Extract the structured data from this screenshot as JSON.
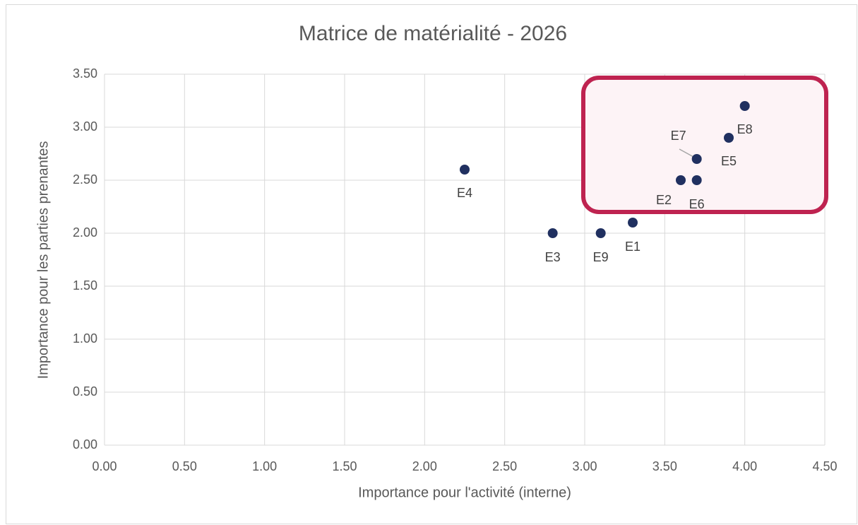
{
  "chart_data": {
    "type": "scatter",
    "title": "Matrice de matérialité - 2026",
    "x_label": "Importance pour l'activité (interne)",
    "y_label": "Importance pour les parties prenantes",
    "series": [
      {
        "color": "#203060",
        "labels": [
          "E1",
          "E2",
          "E3",
          "E4",
          "E5",
          "E6",
          "E7",
          "E8",
          "E9"
        ],
        "x": [
          3.3,
          3.6,
          2.8,
          2.25,
          3.9,
          3.7,
          3.7,
          4.0,
          3.1
        ],
        "values": [
          2.1,
          2.5,
          2.0,
          2.6,
          2.9,
          2.5,
          2.7,
          3.2,
          2.0
        ]
      }
    ],
    "xlim": [
      0,
      4.5
    ],
    "xticks": [
      {
        "value": 0,
        "label": "0.00"
      },
      {
        "value": 0.5,
        "label": "0.50"
      },
      {
        "value": 1,
        "label": "1.00"
      },
      {
        "value": 1.5,
        "label": "1.50"
      },
      {
        "value": 2,
        "label": "2.00"
      },
      {
        "value": 2.5,
        "label": "2.50"
      },
      {
        "value": 3,
        "label": "3.00"
      },
      {
        "value": 3.5,
        "label": "3.50"
      },
      {
        "value": 4,
        "label": "4.00"
      },
      {
        "value": 4.5,
        "label": "4.50"
      }
    ],
    "ylim": [
      0,
      3.5
    ],
    "yticks": [
      {
        "value": 0,
        "label": "0.00"
      },
      {
        "value": 0.5,
        "label": "0.50"
      },
      {
        "value": 1,
        "label": "1.00"
      },
      {
        "value": 1.5,
        "label": "1.50"
      },
      {
        "value": 2,
        "label": "2.00"
      },
      {
        "value": 2.5,
        "label": "2.50"
      },
      {
        "value": 3,
        "label": "3.00"
      },
      {
        "value": 3.5,
        "label": "3.50"
      }
    ],
    "grid": true
  }
}
